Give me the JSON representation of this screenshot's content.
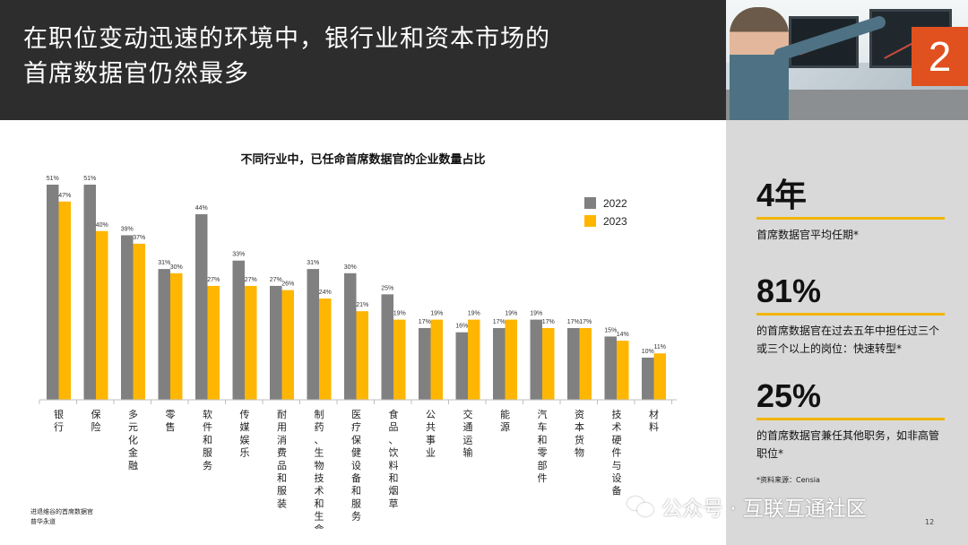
{
  "header": {
    "title_line1": "在职位变动迅速的环境中，银行业和资本市场的",
    "title_line2": "首席数据官仍然最多",
    "badge": "2"
  },
  "photo": {
    "description_icon": "office-photo"
  },
  "colors": {
    "series_2022": "#808080",
    "series_2023": "#FFB600",
    "accent": "#E0511F",
    "header_bg": "#2D2D2D",
    "sidebar_bg": "#D9D9D9"
  },
  "stats": [
    {
      "value": "4年",
      "text": "首席数据官平均任期*"
    },
    {
      "value": "81%",
      "text": "的首席数据官在过去五年中担任过三个或三个以上的岗位：快速转型*"
    },
    {
      "value": "25%",
      "text": "的首席数据官兼任其他职务，如非高管职位*"
    }
  ],
  "source": "*资料来源：Censia",
  "page_number": "12",
  "footnote": {
    "line1": "进退维谷的首席数据官",
    "line2": "普华永道"
  },
  "watermark": "公众号 · 互联互通社区",
  "chart_data": {
    "type": "bar",
    "title": "不同行业中，已任命首席数据官的企业数量占比",
    "categories": [
      "银行",
      "保险",
      "多元化金融",
      "零售",
      "软件和服务",
      "传媒娱乐",
      "耐用消费品和服装",
      "制药、生物技术和生命科学",
      "医疗保健设备和服务",
      "食品、饮料和烟草",
      "公共事业",
      "交通运输",
      "能源",
      "汽车和零部件",
      "资本货物",
      "技术硬件与设备",
      "材料"
    ],
    "series": [
      {
        "name": "2022",
        "color": "#808080",
        "values": [
          51,
          51,
          39,
          31,
          44,
          33,
          27,
          31,
          30,
          25,
          17,
          16,
          17,
          19,
          17,
          15,
          10
        ]
      },
      {
        "name": "2023",
        "color": "#FFB600",
        "values": [
          47,
          40,
          37,
          30,
          27,
          27,
          26,
          24,
          21,
          19,
          19,
          19,
          19,
          17,
          17,
          14,
          11
        ]
      }
    ],
    "value_suffix": "%",
    "ylim": [
      0,
      51
    ],
    "legend": "top-right",
    "grid": false
  }
}
